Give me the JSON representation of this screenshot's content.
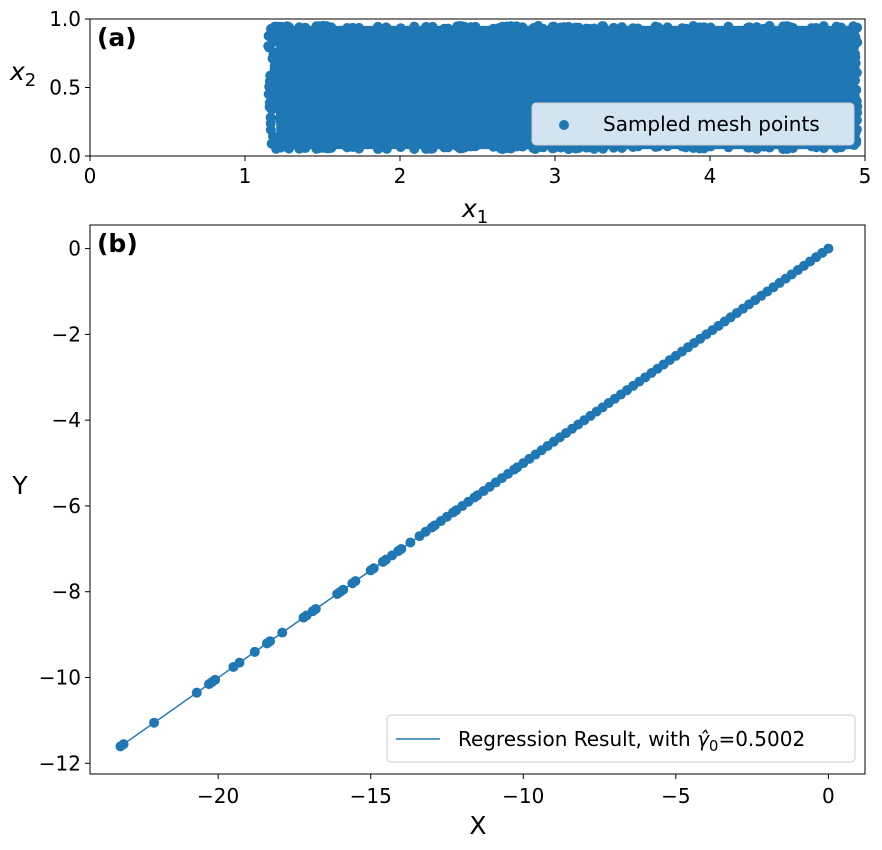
{
  "chart_data": [
    {
      "panel_label": "(a)",
      "type": "scatter",
      "xlabel_main": "x",
      "xlabel_sub": "1",
      "ylabel_main": "x",
      "ylabel_sub": "2",
      "xlim": [
        0,
        5
      ],
      "ylim": [
        0,
        1
      ],
      "xticks": [
        0,
        1,
        2,
        3,
        4,
        5
      ],
      "yticks": [
        0.0,
        0.5,
        1.0
      ],
      "xtick_labels": [
        "0",
        "1",
        "2",
        "3",
        "4",
        "5"
      ],
      "ytick_labels": [
        "0.0",
        "0.5",
        "1.0"
      ],
      "region": {
        "x": [
          1.15,
          4.95
        ],
        "y": [
          0.05,
          0.95
        ]
      },
      "legend": {
        "label": "Sampled mesh points",
        "position": "lower right"
      },
      "color": "#1f77b4"
    },
    {
      "panel_label": "(b)",
      "type": "line+scatter",
      "xlabel": "X",
      "ylabel": "Y",
      "xlim": [
        -24.2,
        1.2
      ],
      "ylim": [
        -12.25,
        0.55
      ],
      "xticks": [
        -20,
        -15,
        -10,
        -5,
        0
      ],
      "yticks": [
        0,
        -2,
        -4,
        -6,
        -8,
        -10,
        -12
      ],
      "xtick_labels": [
        "−20",
        "−15",
        "−10",
        "−5",
        "0"
      ],
      "ytick_labels": [
        "0",
        "−2",
        "−4",
        "−6",
        "−8",
        "−10",
        "−12"
      ],
      "regression": {
        "slope": 0.5002,
        "intercept": 0,
        "x_range": [
          -23.2,
          0
        ]
      },
      "points_x": [
        -23.2,
        -23.1,
        -22.1,
        -20.7,
        -20.3,
        -20.2,
        -20.1,
        -19.5,
        -19.3,
        -18.8,
        -18.4,
        -18.3,
        -17.9,
        -17.2,
        -17.1,
        -16.9,
        -16.8,
        -16.1,
        -16.0,
        -15.9,
        -15.6,
        -15.5,
        -15.0,
        -14.9,
        -14.6,
        -14.5,
        -14.3,
        -14.1,
        -14.0,
        -13.7,
        -13.4,
        -13.2,
        -13.0,
        -12.9,
        -12.7,
        -12.5,
        -12.3,
        -12.2,
        -12.0,
        -11.8,
        -11.6,
        -11.5,
        -11.3,
        -11.1,
        -10.9,
        -10.7,
        -10.5,
        -10.3,
        -10.2,
        -10.0,
        -9.8,
        -9.6,
        -9.4,
        -9.2,
        -9.0,
        -8.8,
        -8.6,
        -8.4,
        -8.2,
        -8.0,
        -7.8,
        -7.6,
        -7.4,
        -7.2,
        -7.0,
        -6.8,
        -6.6,
        -6.4,
        -6.2,
        -6.0,
        -5.8,
        -5.6,
        -5.4,
        -5.2,
        -5.0,
        -4.8,
        -4.6,
        -4.4,
        -4.2,
        -4.0,
        -3.8,
        -3.6,
        -3.4,
        -3.2,
        -3.0,
        -2.8,
        -2.6,
        -2.4,
        -2.2,
        -2.0,
        -1.8,
        -1.6,
        -1.4,
        -1.2,
        -1.0,
        -0.8,
        -0.6,
        -0.4,
        -0.2,
        0.0
      ],
      "legend": {
        "label_prefix": "Regression Result, with ",
        "gamma_symbol": "γ̂",
        "gamma_sub": "0",
        "label_suffix": "=0.5002",
        "position": "lower right"
      },
      "color": "#1f77b4"
    }
  ]
}
